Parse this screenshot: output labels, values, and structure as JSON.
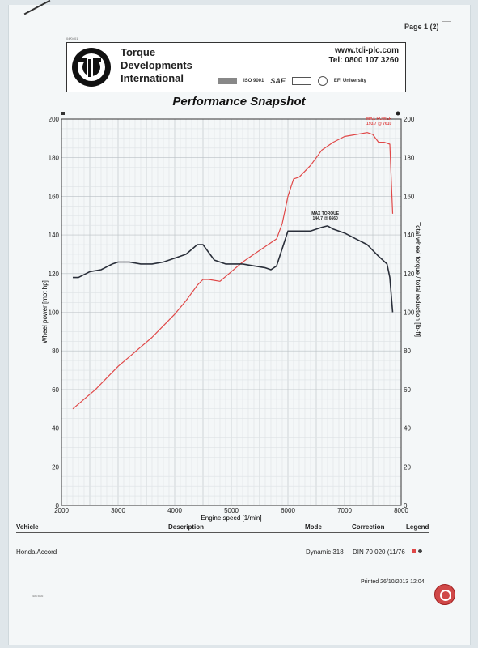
{
  "page_number": "Page 1 (2)",
  "header": {
    "company_lines": [
      "Torque",
      "Developments",
      "International"
    ],
    "website": "www.tdi-plc.com",
    "phone": "Tel: 0800 107 3260",
    "certifications": [
      "ISO 9001",
      "SAE",
      "EFI University"
    ],
    "small_ref": "04/0401"
  },
  "title": "Performance Snapshot",
  "chart_data": {
    "type": "line",
    "title": "Performance Snapshot",
    "xlabel": "Engine speed [1/min]",
    "ylabel_left": "Wheel power [mot hp]",
    "ylabel_right": "Total wheel torque / total reduction [lb-ft]",
    "xlim": [
      2000,
      8000
    ],
    "ylim": [
      0,
      200
    ],
    "x_ticks": [
      2000,
      3000,
      4000,
      5000,
      6000,
      7000,
      8000
    ],
    "y_ticks": [
      0,
      20,
      40,
      60,
      80,
      100,
      120,
      140,
      160,
      180,
      200
    ],
    "grid": true,
    "series": [
      {
        "color": "#e04848",
        "axis": "left",
        "x": [
          2200,
          2400,
          2600,
          2800,
          3000,
          3200,
          3400,
          3600,
          3800,
          4000,
          4200,
          4400,
          4500,
          4600,
          4800,
          5000,
          5200,
          5400,
          5600,
          5800,
          5900,
          6000,
          6100,
          6200,
          6400,
          6600,
          6800,
          7000,
          7200,
          7400,
          7500,
          7600,
          7700,
          7800,
          7850
        ],
        "y": [
          50,
          55,
          60,
          66,
          72,
          77,
          82,
          87,
          93,
          99,
          106,
          114,
          117,
          117,
          116,
          121,
          126,
          130,
          134,
          138,
          146,
          160,
          169,
          170,
          176,
          184,
          188,
          191,
          192,
          193,
          192,
          188,
          188,
          187,
          151
        ]
      },
      {
        "color": "#2a2f3a",
        "axis": "right",
        "x": [
          2200,
          2300,
          2500,
          2700,
          2900,
          3000,
          3200,
          3400,
          3600,
          3800,
          4000,
          4200,
          4400,
          4500,
          4600,
          4700,
          4900,
          5000,
          5200,
          5400,
          5600,
          5700,
          5800,
          5900,
          6000,
          6200,
          6400,
          6600,
          6700,
          6800,
          7000,
          7200,
          7400,
          7600,
          7750,
          7800,
          7850
        ],
        "y": [
          118,
          118,
          121,
          122,
          125,
          126,
          126,
          125,
          125,
          126,
          128,
          130,
          135,
          135,
          131,
          127,
          125,
          125,
          125,
          124,
          123,
          122,
          124,
          133,
          142,
          142,
          142,
          144,
          144.7,
          143,
          141,
          138,
          135,
          129,
          125,
          118,
          100
        ]
      }
    ],
    "annotations": [
      {
        "lines": [
          "MAX POWER",
          "193.7 @ 7610"
        ],
        "color": "#e04848",
        "x": 7610,
        "y": 193.7
      },
      {
        "lines": [
          "MAX TORQUE",
          "144.7 @ 6660"
        ],
        "color": "#222222",
        "x": 6660,
        "y": 144.7
      }
    ]
  },
  "table": {
    "headers": [
      "Vehicle",
      "Description",
      "Mode",
      "Correction",
      "Legend"
    ],
    "row": {
      "vehicle": "Honda Accord",
      "mode": "Dynamic 318",
      "correction": "DIN 70 020 (11/76"
    }
  },
  "printed": "Printed 26/10/2013 12:04",
  "footer_ref": "487816"
}
